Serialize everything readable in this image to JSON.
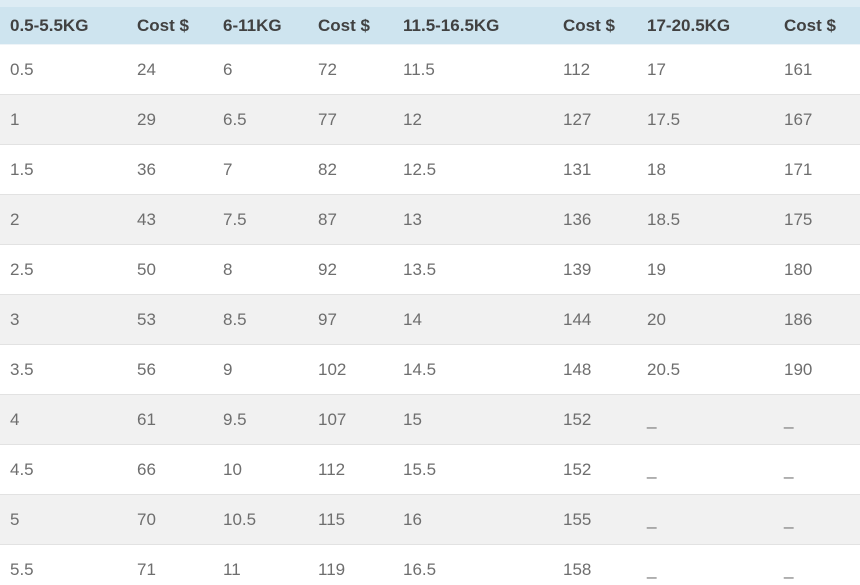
{
  "table": {
    "columns": [
      {
        "label": "0.5-5.5KG"
      },
      {
        "label": "Cost $"
      },
      {
        "label": "6-11KG"
      },
      {
        "label": "Cost $"
      },
      {
        "label": "11.5-16.5KG"
      },
      {
        "label": "Cost $"
      },
      {
        "label": "17-20.5KG"
      },
      {
        "label": "Cost $"
      }
    ],
    "rows": [
      [
        "0.5",
        "24",
        "6",
        "72",
        "11.5",
        "112",
        "17",
        "161"
      ],
      [
        "1",
        "29",
        "6.5",
        "77",
        "12",
        "127",
        "17.5",
        "167"
      ],
      [
        "1.5",
        "36",
        "7",
        "82",
        "12.5",
        "131",
        "18",
        "171"
      ],
      [
        "2",
        "43",
        "7.5",
        "87",
        "13",
        "136",
        "18.5",
        "175"
      ],
      [
        "2.5",
        "50",
        "8",
        "92",
        "13.5",
        "139",
        "19",
        "180"
      ],
      [
        "3",
        "53",
        "8.5",
        "97",
        "14",
        "144",
        "20",
        "186"
      ],
      [
        "3.5",
        "56",
        "9",
        "102",
        "14.5",
        "148",
        "20.5",
        "190"
      ],
      [
        "4",
        "61",
        "9.5",
        "107",
        "15",
        "152",
        "_",
        "_"
      ],
      [
        "4.5",
        "66",
        "10",
        "112",
        "15.5",
        "152",
        "_",
        "_"
      ],
      [
        "5",
        "70",
        "10.5",
        "115",
        "16",
        "155",
        "_",
        "_"
      ],
      [
        "5.5",
        "71",
        "11",
        "119",
        "16.5",
        "158",
        "_",
        "_"
      ]
    ],
    "colors": {
      "header_bg": "#cee4ef",
      "header_top_strip": "#ddecf4",
      "header_text": "#414141",
      "row_bg": "#ffffff",
      "row_alt_bg": "#f1f1f1",
      "cell_text": "#6e6e6e",
      "row_border": "#e2e2e2"
    }
  }
}
